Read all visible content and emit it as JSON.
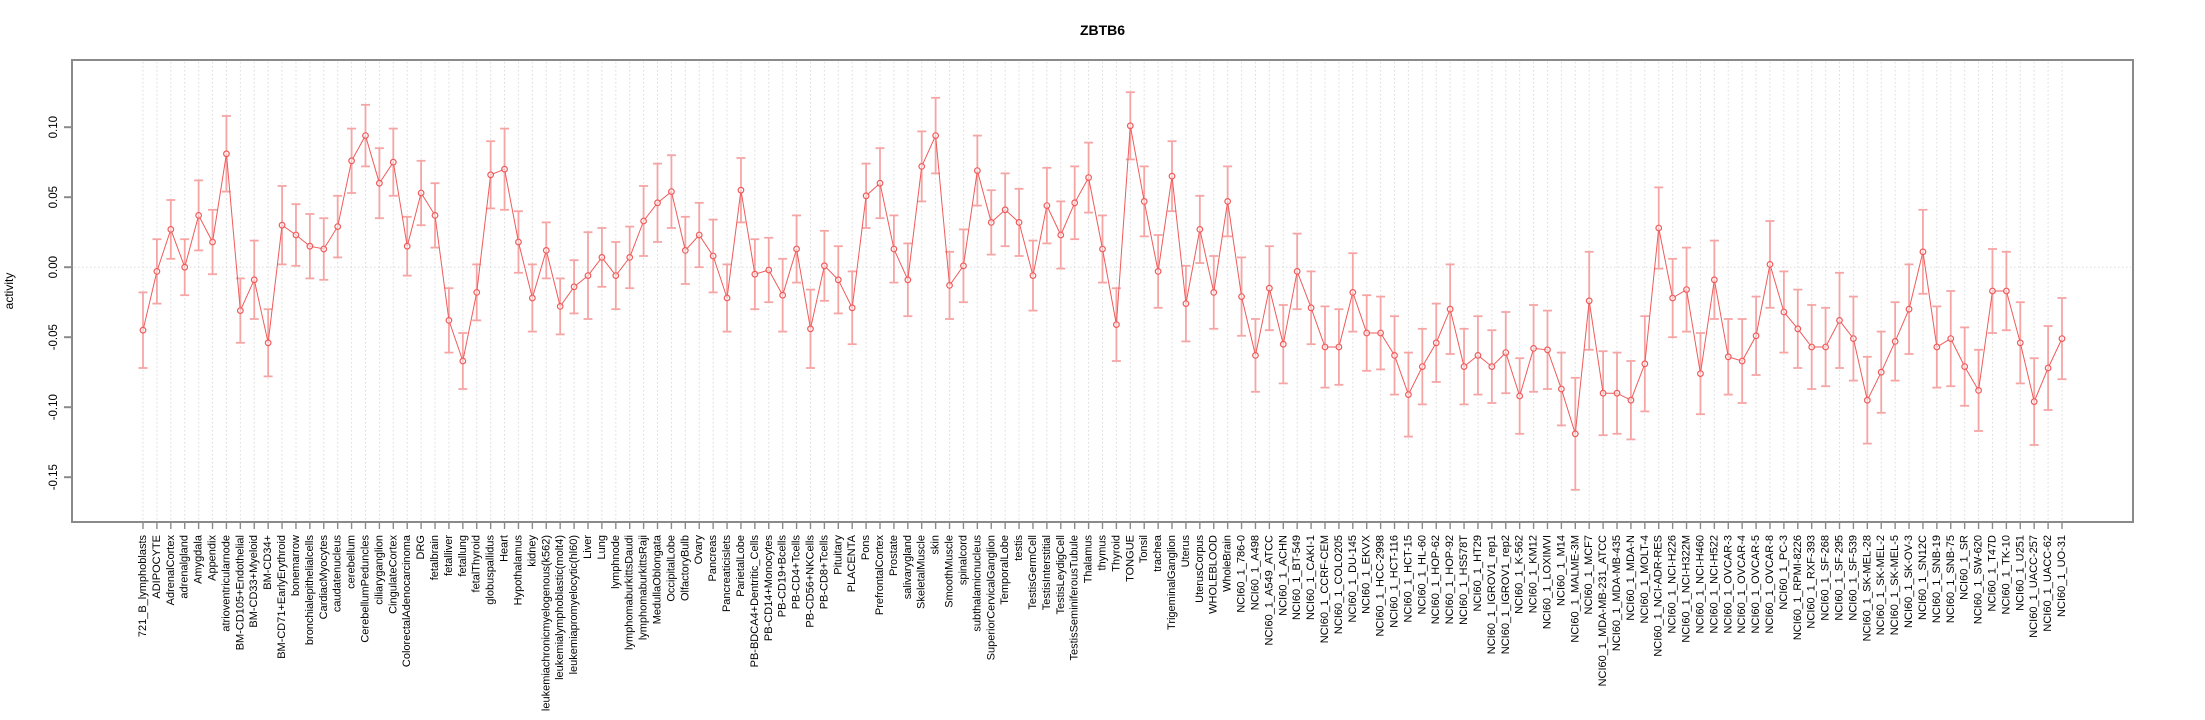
{
  "page": {
    "title": "ZBTB6"
  },
  "chart_data": {
    "type": "line",
    "title": "ZBTB6",
    "ylabel": "activity",
    "xlabel": "",
    "legend": "none",
    "grid": "dotted vertical gridline per category; dotted horizontal line at 0",
    "point_style": "open circle with vertical error bars and caps",
    "ylim": [
      -0.182,
      0.148
    ],
    "yticks": [
      0.1,
      0.05,
      0.0,
      -0.05,
      -0.1,
      -0.15
    ],
    "ytick_labels": [
      "0.10",
      "0.05",
      "0.00",
      "-0.05",
      "-0.10",
      "-0.15"
    ],
    "colors": {
      "line": "#EF5B5B",
      "point": "#EF5B5B",
      "error_bar": "#F6A5A5",
      "grid": "#DBDBDB",
      "axis": "#8A8A8A",
      "text": "#000000",
      "background": "#FFFFFF"
    },
    "categories": [
      "721_B_lymphoblasts",
      "ADIPOCYTE",
      "AdrenalCortex",
      "adrenalgland",
      "Amygdala",
      "Appendix",
      "atrioventricularnode",
      "BM-CD105+Endothelial",
      "BM-CD33+Myeloid",
      "BM-CD34+",
      "BM-CD71+EarlyErythroid",
      "bonemarrow",
      "bronchialepithelialcells",
      "CardiacMyocytes",
      "caudatenucleus",
      "cerebellum",
      "CerebellumPeduncles",
      "ciliaryganglion",
      "CingulateCortex",
      "ColorectalAdenocarcinoma",
      "DRG",
      "fetalbrain",
      "fetalliver",
      "fetallung",
      "fetalThyroid",
      "globuspallidus",
      "Heart",
      "Hypothalamus",
      "kidney",
      "leukemiachronicmyelogenous(k562)",
      "leukemialymphoblastic(molt4)",
      "leukemiapromyelocytic(hl60)",
      "Liver",
      "Lung",
      "lymphnode",
      "lymphomaburkittsDaudi",
      "lymphomaburkittsRaji",
      "MedullaOblongata",
      "OccipitalLobe",
      "OlfactoryBulb",
      "Ovary",
      "Pancreas",
      "Pancreaticislets",
      "ParietalLobe",
      "PB-BDCA4+Dentritic_Cells",
      "PB-CD14+Monocytes",
      "PB-CD19+Bcells",
      "PB-CD4+Tcells",
      "PB-CD56+NKCells",
      "PB-CD8+Tcells",
      "Pituitary",
      "PLACENTA",
      "Pons",
      "PrefrontalCortex",
      "Prostate",
      "salivarygland",
      "SkeletalMuscle",
      "skin",
      "SmoothMuscle",
      "spinalcord",
      "subthalamicnucleus",
      "SuperiorCervicalGanglion",
      "TemporalLobe",
      "testis",
      "TestisGermCell",
      "TestisInterstitial",
      "TestisLeydigCell",
      "TestisSeminiferousTubule",
      "Thalamus",
      "thymus",
      "Thyroid",
      "TONGUE",
      "Tonsil",
      "trachea",
      "TrigeminalGanglion",
      "Uterus",
      "UterusCorpus",
      "WHOLEBLOOD",
      "WholeBrain",
      "NCI60_1_786-0",
      "NCI60_1_A498",
      "NCI60_1_A549_ATCC",
      "NCI60_1_ACHN",
      "NCI60_1_BT-549",
      "NCI60_1_CAKI-1",
      "NCI60_1_CCRF-CEM",
      "NCI60_1_COLO205",
      "NCI60_1_DU-145",
      "NCI60_1_EKVX",
      "NCI60_1_HCC-2998",
      "NCI60_1_HCT-116",
      "NCI60_1_HCT-15",
      "NCI60_1_HL-60",
      "NCI60_1_HOP-62",
      "NCI60_1_HOP-92",
      "NCI60_1_HS578T",
      "NCI60_1_HT29",
      "NCI60_1_IGROV1_rep1",
      "NCI60_1_IGROV1_rep2",
      "NCI60_1_K-562",
      "NCI60_1_KM12",
      "NCI60_1_LOXIMVI",
      "NCI60_1_M14",
      "NCI60_1_MALME-3M",
      "NCI60_1_MCF7",
      "NCI60_1_MDA-MB-231_ATCC",
      "NCI60_1_MDA-MB-435",
      "NCI60_1_MDA-N",
      "NCI60_1_MOLT-4",
      "NCI60_1_NCI-ADR-RES",
      "NCI60_1_NCI-H226",
      "NCI60_1_NCI-H322M",
      "NCI60_1_NCI-H460",
      "NCI60_1_NCI-H522",
      "NCI60_1_OVCAR-3",
      "NCI60_1_OVCAR-4",
      "NCI60_1_OVCAR-5",
      "NCI60_1_OVCAR-8",
      "NCI60_1_PC-3",
      "NCI60_1_RPMI-8226",
      "NCI60_1_RXF-393",
      "NCI60_1_SF-268",
      "NCI60_1_SF-295",
      "NCI60_1_SF-539",
      "NCI60_1_SK-MEL-28",
      "NCI60_1_SK-MEL-2",
      "NCI60_1_SK-MEL-5",
      "NCI60_1_SK-OV-3",
      "NCI60_1_SN12C",
      "NCI60_1_SNB-19",
      "NCI60_1_SNB-75",
      "NCI60_1_SR",
      "NCI60_1_SW-620",
      "NCI60_1_T47D",
      "NCI60_1_TK-10",
      "NCI60_1_U251",
      "NCI60_1_UACC-257",
      "NCI60_1_UACC-62",
      "NCI60_1_UO-31"
    ],
    "values": [
      -0.045,
      -0.003,
      0.027,
      0.0,
      0.037,
      0.018,
      0.081,
      -0.031,
      -0.009,
      -0.054,
      0.03,
      0.023,
      0.015,
      0.013,
      0.029,
      0.076,
      0.094,
      0.06,
      0.075,
      0.015,
      0.053,
      0.037,
      -0.038,
      -0.067,
      -0.018,
      0.066,
      0.07,
      0.018,
      -0.022,
      0.012,
      -0.028,
      -0.014,
      -0.006,
      0.007,
      -0.006,
      0.007,
      0.033,
      0.046,
      0.054,
      0.012,
      0.023,
      0.008,
      -0.022,
      0.055,
      -0.005,
      -0.002,
      -0.02,
      0.013,
      -0.044,
      0.001,
      -0.009,
      -0.029,
      0.051,
      0.06,
      0.013,
      -0.009,
      0.072,
      0.094,
      -0.013,
      0.001,
      0.069,
      0.032,
      0.041,
      0.032,
      -0.006,
      0.044,
      0.023,
      0.046,
      0.064,
      0.013,
      -0.041,
      0.101,
      0.047,
      -0.003,
      0.065,
      -0.026,
      0.027,
      -0.018,
      0.047,
      -0.021,
      -0.063,
      -0.015,
      -0.055,
      -0.003,
      -0.029,
      -0.057,
      -0.057,
      -0.018,
      -0.047,
      -0.047,
      -0.063,
      -0.091,
      -0.071,
      -0.054,
      -0.03,
      -0.071,
      -0.063,
      -0.071,
      -0.061,
      -0.092,
      -0.058,
      -0.059,
      -0.087,
      -0.119,
      -0.024,
      -0.09,
      -0.09,
      -0.095,
      -0.069,
      0.028,
      -0.022,
      -0.016,
      -0.076,
      -0.009,
      -0.064,
      -0.067,
      -0.049,
      0.002,
      -0.032,
      -0.044,
      -0.057,
      -0.057,
      -0.038,
      -0.051,
      -0.095,
      -0.075,
      -0.053,
      -0.03,
      0.011,
      -0.057,
      -0.051,
      -0.071,
      -0.088,
      -0.017,
      -0.017,
      -0.054,
      -0.096,
      -0.072,
      -0.051
    ],
    "errors": [
      0.027,
      0.023,
      0.021,
      0.02,
      0.025,
      0.023,
      0.027,
      0.023,
      0.028,
      0.024,
      0.028,
      0.022,
      0.023,
      0.022,
      0.022,
      0.023,
      0.022,
      0.025,
      0.024,
      0.021,
      0.023,
      0.023,
      0.023,
      0.02,
      0.02,
      0.024,
      0.029,
      0.022,
      0.024,
      0.02,
      0.02,
      0.019,
      0.031,
      0.021,
      0.024,
      0.022,
      0.025,
      0.028,
      0.026,
      0.024,
      0.023,
      0.026,
      0.024,
      0.023,
      0.025,
      0.023,
      0.026,
      0.024,
      0.028,
      0.025,
      0.024,
      0.026,
      0.023,
      0.025,
      0.024,
      0.026,
      0.025,
      0.027,
      0.024,
      0.026,
      0.025,
      0.023,
      0.026,
      0.024,
      0.025,
      0.027,
      0.024,
      0.026,
      0.025,
      0.024,
      0.026,
      0.024,
      0.025,
      0.026,
      0.025,
      0.027,
      0.024,
      0.026,
      0.025,
      0.028,
      0.026,
      0.03,
      0.028,
      0.027,
      0.026,
      0.029,
      0.027,
      0.028,
      0.027,
      0.026,
      0.028,
      0.03,
      0.027,
      0.028,
      0.032,
      0.027,
      0.028,
      0.026,
      0.029,
      0.027,
      0.031,
      0.028,
      0.026,
      0.04,
      0.035,
      0.03,
      0.029,
      0.028,
      0.034,
      0.029,
      0.028,
      0.03,
      0.029,
      0.028,
      0.027,
      0.03,
      0.028,
      0.031,
      0.029,
      0.028,
      0.03,
      0.028,
      0.034,
      0.03,
      0.031,
      0.029,
      0.028,
      0.032,
      0.03,
      0.029,
      0.034,
      0.028,
      0.029,
      0.03,
      0.028,
      0.029,
      0.031,
      0.03,
      0.029
    ]
  }
}
